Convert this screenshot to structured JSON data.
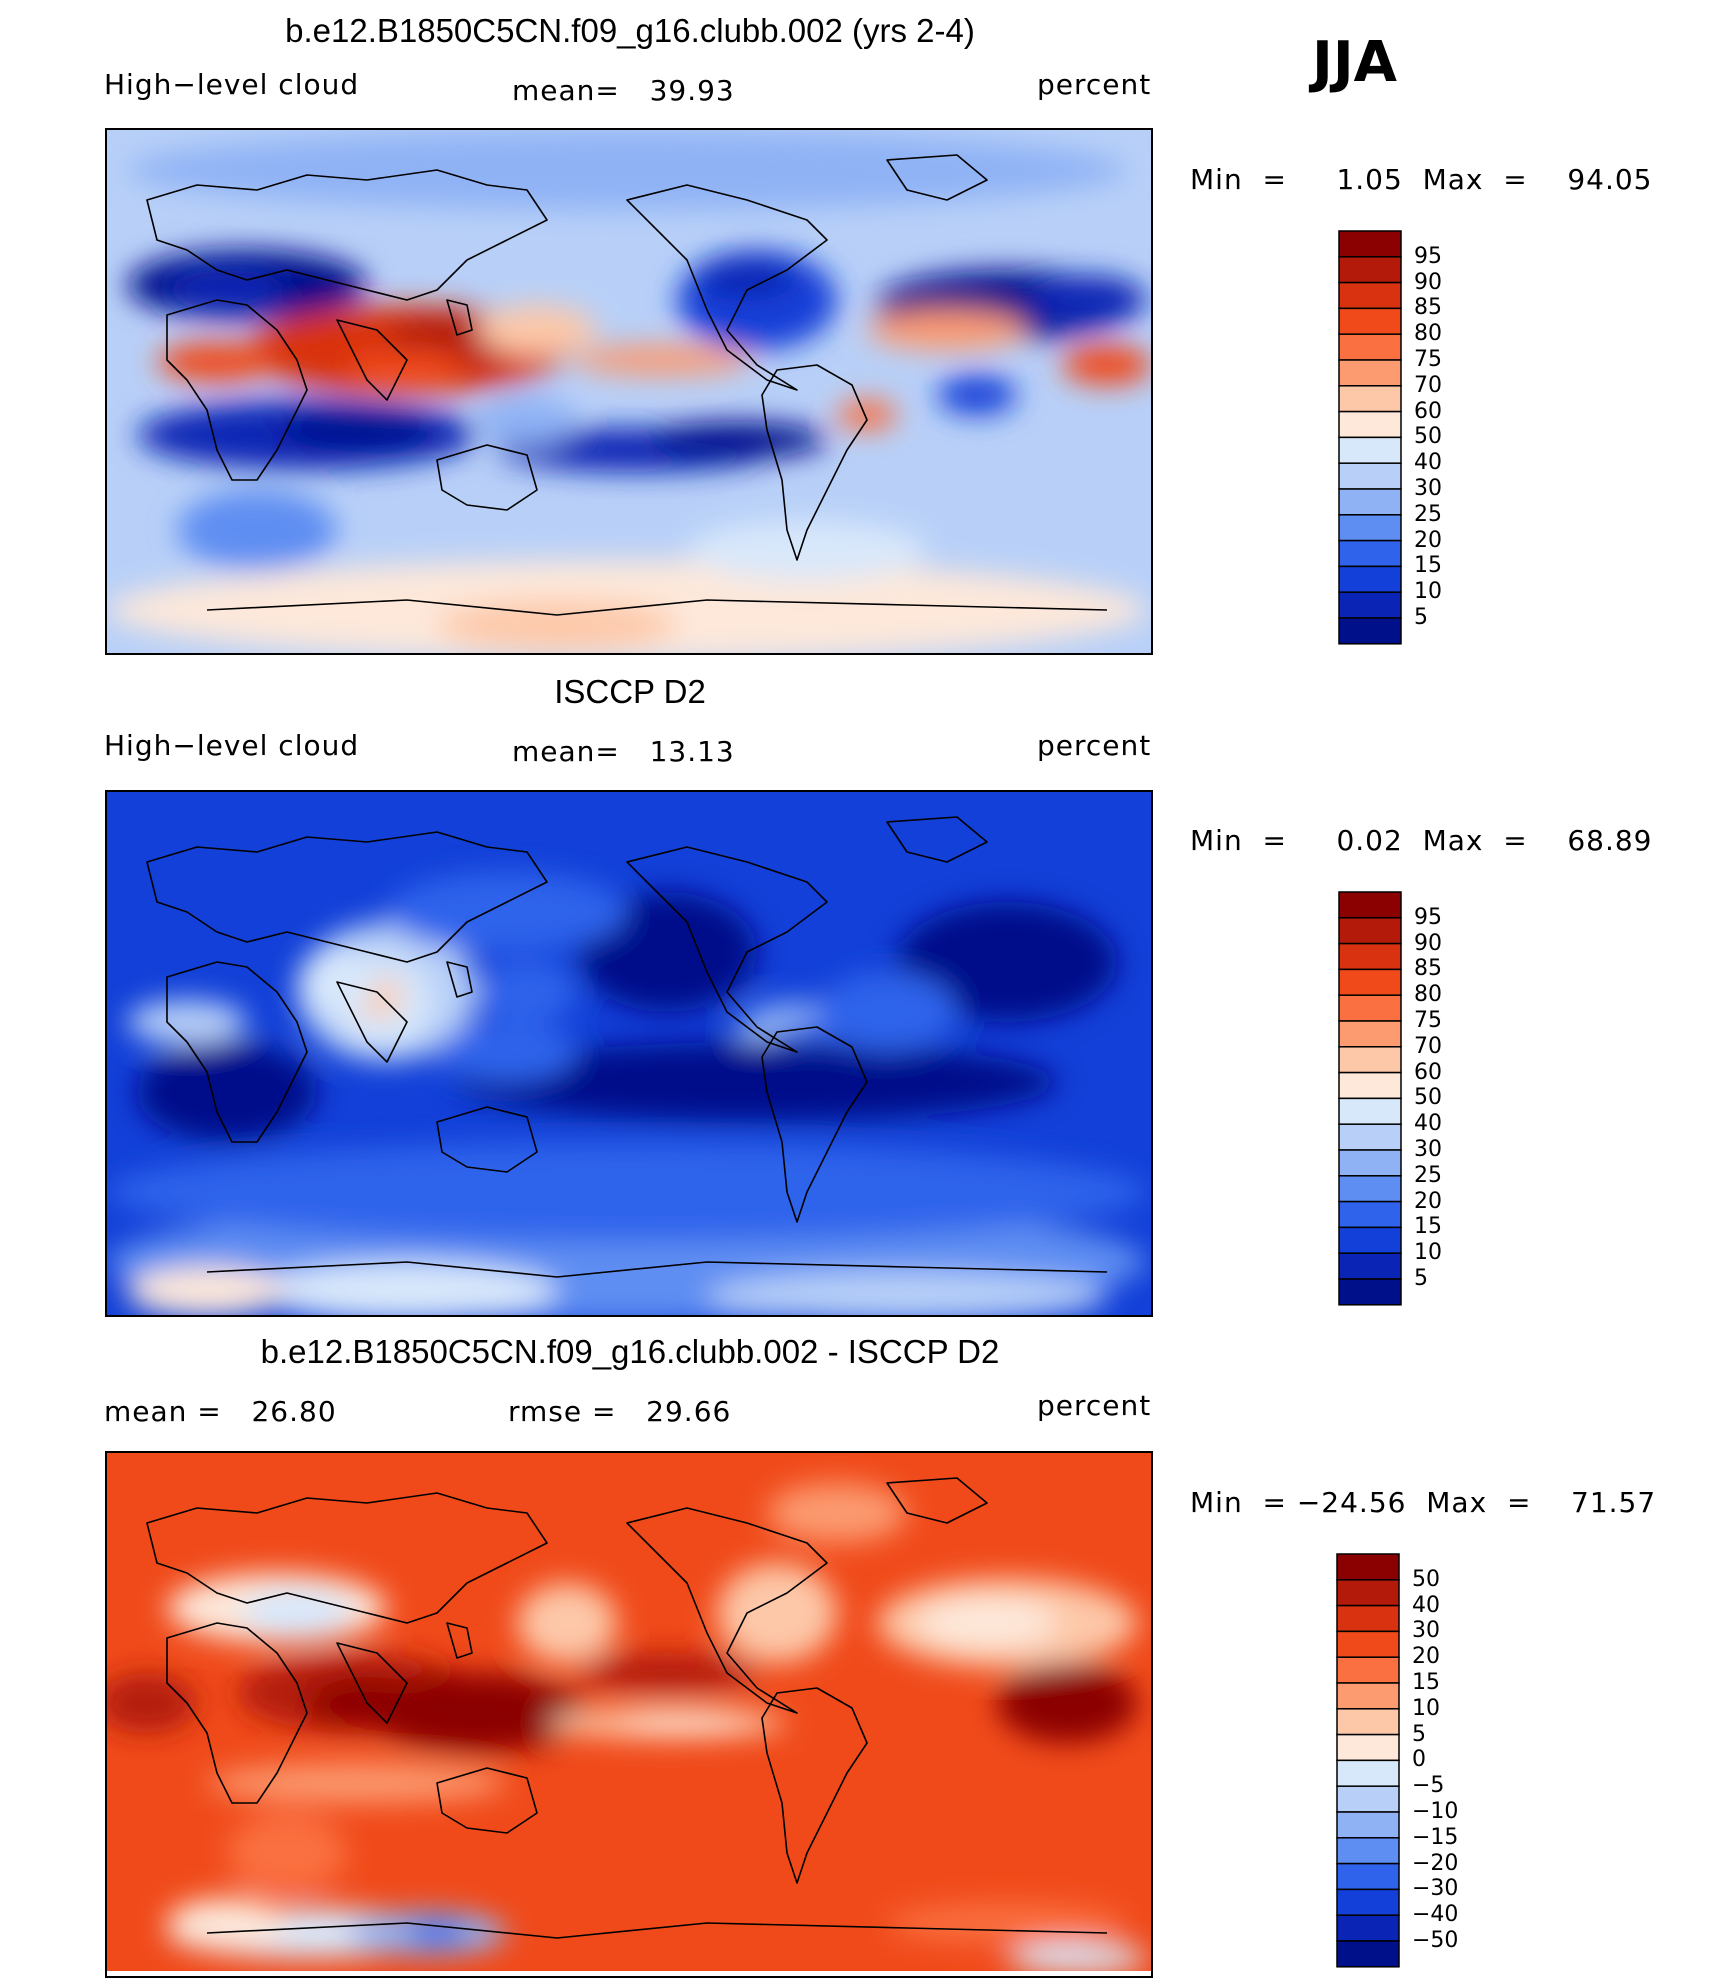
{
  "season": "JJA",
  "chart_data": [
    {
      "type": "heatmap",
      "title": "b.e12.B1850C5CN.f09_g16.clubb.002 (yrs 2-4)",
      "variable": "High−level cloud",
      "stat_text": "mean=   39.93",
      "mean": 39.93,
      "units": "percent",
      "minmax_text": "Min  =     1.05  Max  =    94.05",
      "min": 1.05,
      "max": 94.05,
      "colorbar_levels": [
        "95",
        "90",
        "85",
        "80",
        "75",
        "70",
        "60",
        "50",
        "40",
        "30",
        "25",
        "20",
        "15",
        "10",
        "5"
      ],
      "colorbar_colors": [
        "#8b0000",
        "#b31a0a",
        "#d93210",
        "#f04a1a",
        "#fa7040",
        "#fc9a70",
        "#fdc8a8",
        "#fde8da",
        "#d8e8fb",
        "#b8d0f8",
        "#8fb2f5",
        "#5e8ef2",
        "#2f63eb",
        "#1240d8",
        "#0a25b5",
        "#00108a"
      ]
    },
    {
      "type": "heatmap",
      "title": "ISCCP D2",
      "variable": "High−level cloud",
      "stat_text": "mean=   13.13",
      "mean": 13.13,
      "units": "percent",
      "minmax_text": "Min  =     0.02  Max  =    68.89",
      "min": 0.02,
      "max": 68.89,
      "colorbar_levels": [
        "95",
        "90",
        "85",
        "80",
        "75",
        "70",
        "60",
        "50",
        "40",
        "30",
        "25",
        "20",
        "15",
        "10",
        "5"
      ],
      "colorbar_colors": [
        "#8b0000",
        "#b31a0a",
        "#d93210",
        "#f04a1a",
        "#fa7040",
        "#fc9a70",
        "#fdc8a8",
        "#fde8da",
        "#d8e8fb",
        "#b8d0f8",
        "#8fb2f5",
        "#5e8ef2",
        "#2f63eb",
        "#1240d8",
        "#0a25b5",
        "#00108a"
      ]
    },
    {
      "type": "heatmap",
      "title": "b.e12.B1850C5CN.f09_g16.clubb.002 - ISCCP D2",
      "variable": "",
      "stat_text": "mean =   26.80",
      "stat2_text": "rmse =   29.66",
      "mean": 26.8,
      "rmse": 29.66,
      "units": "percent",
      "minmax_text": "Min  = −24.56  Max  =    71.57",
      "min": -24.56,
      "max": 71.57,
      "colorbar_levels": [
        "50",
        "40",
        "30",
        "20",
        "15",
        "10",
        "5",
        "0",
        "−5",
        "−10",
        "−15",
        "−20",
        "−30",
        "−40",
        "−50"
      ],
      "colorbar_colors": [
        "#8b0000",
        "#b31a0a",
        "#d93210",
        "#f04a1a",
        "#fa7040",
        "#fc9a70",
        "#fdc8a8",
        "#fde8da",
        "#d8e8fb",
        "#b8d0f8",
        "#8fb2f5",
        "#5e8ef2",
        "#2f63eb",
        "#1240d8",
        "#0a25b5",
        "#00108a"
      ]
    }
  ]
}
